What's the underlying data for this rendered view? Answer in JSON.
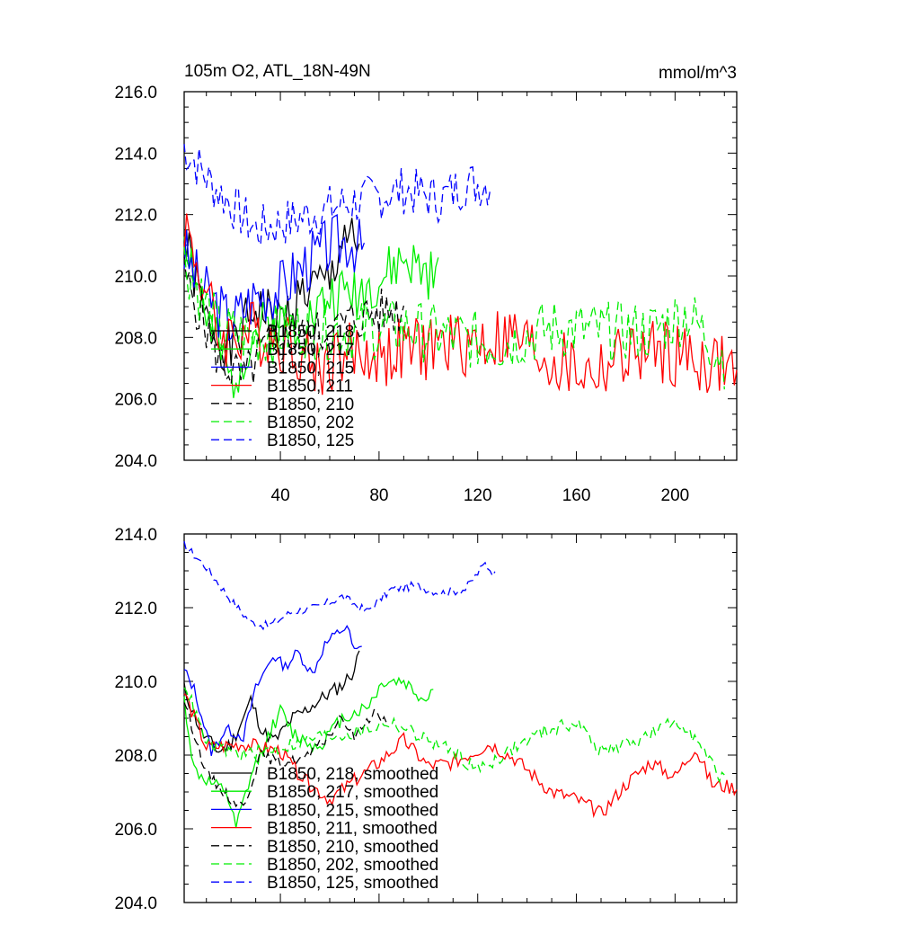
{
  "chart_data": [
    {
      "type": "line",
      "title_left": "105m O2, ATL_18N-49N",
      "title_right": "mmol/m^3",
      "xlim": [
        1,
        225
      ],
      "ylim": [
        204,
        216
      ],
      "xticks": [
        "40",
        "80",
        "120",
        "160",
        "200"
      ],
      "yticks": [
        "204.0",
        "206.0",
        "208.0",
        "210.0",
        "212.0",
        "214.0",
        "216.0"
      ],
      "series": [
        {
          "name": "B1850, 218",
          "color": "#000000",
          "dash": "solid",
          "anchors": [
            [
              1,
              211.2
            ],
            [
              10,
              208.5
            ],
            [
              20,
              207.5
            ],
            [
              30,
              209.0
            ],
            [
              40,
              208.5
            ],
            [
              50,
              209.5
            ],
            [
              60,
              209.8
            ],
            [
              66,
              211.5
            ],
            [
              72,
              210.5
            ]
          ],
          "amp": 0.9,
          "seed": 1
        },
        {
          "name": "B1850, 217",
          "color": "#00ee00",
          "dash": "solid",
          "anchors": [
            [
              1,
              211.5
            ],
            [
              10,
              208.6
            ],
            [
              20,
              206.5
            ],
            [
              30,
              208.3
            ],
            [
              40,
              208.4
            ],
            [
              50,
              208.5
            ],
            [
              60,
              209.3
            ],
            [
              70,
              209.5
            ],
            [
              80,
              209.8
            ],
            [
              90,
              210.5
            ],
            [
              104,
              209.8
            ]
          ],
          "amp": 0.9,
          "seed": 2
        },
        {
          "name": "B1850, 215",
          "color": "#0000ff",
          "dash": "solid",
          "anchors": [
            [
              1,
              210.8
            ],
            [
              8,
              209.6
            ],
            [
              20,
              208.5
            ],
            [
              30,
              209.4
            ],
            [
              40,
              209.6
            ],
            [
              50,
              210.4
            ],
            [
              60,
              211.0
            ],
            [
              68,
              211.2
            ],
            [
              74,
              210.8
            ]
          ],
          "amp": 1.0,
          "seed": 3
        },
        {
          "name": "B1850, 211",
          "color": "#ff0000",
          "dash": "solid",
          "anchors": [
            [
              1,
              211.8
            ],
            [
              15,
              208.0
            ],
            [
              30,
              208.2
            ],
            [
              45,
              207.8
            ],
            [
              55,
              207.0
            ],
            [
              65,
              207.5
            ],
            [
              80,
              207.4
            ],
            [
              100,
              207.7
            ],
            [
              115,
              207.8
            ],
            [
              135,
              208.0
            ],
            [
              150,
              207.2
            ],
            [
              165,
              206.8
            ],
            [
              180,
              207.4
            ],
            [
              195,
              207.5
            ],
            [
              210,
              207.2
            ],
            [
              225,
              207.0
            ]
          ],
          "amp": 1.1,
          "seed": 4
        },
        {
          "name": "B1850, 210",
          "color": "#000000",
          "dash": "dashed",
          "anchors": [
            [
              1,
              210.0
            ],
            [
              15,
              207.3
            ],
            [
              25,
              206.6
            ],
            [
              35,
              207.8
            ],
            [
              50,
              208.0
            ],
            [
              60,
              208.2
            ],
            [
              70,
              208.6
            ],
            [
              80,
              208.8
            ],
            [
              90,
              208.9
            ]
          ],
          "amp": 0.8,
          "seed": 5
        },
        {
          "name": "B1850, 202",
          "color": "#00ee00",
          "dash": "dashed",
          "anchors": [
            [
              1,
              210.5
            ],
            [
              15,
              208.2
            ],
            [
              30,
              208.0
            ],
            [
              50,
              208.3
            ],
            [
              70,
              208.2
            ],
            [
              90,
              208.3
            ],
            [
              110,
              208.0
            ],
            [
              130,
              207.8
            ],
            [
              150,
              208.3
            ],
            [
              170,
              208.2
            ],
            [
              190,
              208.2
            ],
            [
              205,
              208.8
            ],
            [
              215,
              207.8
            ],
            [
              220,
              207.3
            ]
          ],
          "amp": 1.0,
          "seed": 6
        },
        {
          "name": "B1850, 125",
          "color": "#0000ff",
          "dash": "dashed",
          "anchors": [
            [
              1,
              214.2
            ],
            [
              12,
              213.0
            ],
            [
              30,
              211.5
            ],
            [
              45,
              211.8
            ],
            [
              60,
              212.2
            ],
            [
              75,
              212.5
            ],
            [
              90,
              212.8
            ],
            [
              105,
              212.5
            ],
            [
              115,
              213.0
            ],
            [
              125,
              213.0
            ]
          ],
          "amp": 0.8,
          "seed": 7
        }
      ]
    },
    {
      "type": "line",
      "xlim": [
        1,
        225
      ],
      "ylim": [
        204,
        214
      ],
      "yticks": [
        "204.0",
        "206.0",
        "208.0",
        "210.0",
        "212.0",
        "214.0"
      ],
      "series": [
        {
          "name": "B1850, 218, smoothed",
          "color": "#000000",
          "dash": "solid",
          "anchors": [
            [
              1,
              209.8
            ],
            [
              8,
              208.6
            ],
            [
              15,
              208.1
            ],
            [
              20,
              208.3
            ],
            [
              25,
              209.0
            ],
            [
              28,
              209.5
            ],
            [
              33,
              208.6
            ],
            [
              38,
              208.4
            ],
            [
              45,
              209.0
            ],
            [
              50,
              209.2
            ],
            [
              58,
              209.6
            ],
            [
              65,
              209.9
            ],
            [
              70,
              210.3
            ],
            [
              72,
              210.8
            ]
          ],
          "amp": 0.2,
          "seed": 11
        },
        {
          "name": "B1850, 217, smoothed",
          "color": "#00ee00",
          "dash": "solid",
          "anchors": [
            [
              1,
              209.5
            ],
            [
              5,
              207.6
            ],
            [
              12,
              207.2
            ],
            [
              18,
              207.0
            ],
            [
              22,
              206.0
            ],
            [
              28,
              207.4
            ],
            [
              35,
              208.5
            ],
            [
              40,
              209.2
            ],
            [
              45,
              208.6
            ],
            [
              55,
              208.2
            ],
            [
              65,
              209.0
            ],
            [
              75,
              209.3
            ],
            [
              82,
              210.0
            ],
            [
              90,
              210.0
            ],
            [
              98,
              209.5
            ],
            [
              102,
              209.8
            ]
          ],
          "amp": 0.2,
          "seed": 12
        },
        {
          "name": "B1850, 215, smoothed",
          "color": "#0000ff",
          "dash": "solid",
          "anchors": [
            [
              1,
              210.3
            ],
            [
              5,
              209.8
            ],
            [
              12,
              208.1
            ],
            [
              18,
              208.7
            ],
            [
              25,
              208.5
            ],
            [
              30,
              209.8
            ],
            [
              37,
              210.7
            ],
            [
              42,
              210.4
            ],
            [
              47,
              210.8
            ],
            [
              53,
              210.2
            ],
            [
              58,
              211.0
            ],
            [
              63,
              211.3
            ],
            [
              67,
              211.5
            ],
            [
              70,
              210.8
            ],
            [
              73,
              210.9
            ]
          ],
          "amp": 0.15,
          "seed": 13
        },
        {
          "name": "B1850, 211, smoothed",
          "color": "#ff0000",
          "dash": "solid",
          "anchors": [
            [
              1,
              209.7
            ],
            [
              10,
              208.2
            ],
            [
              25,
              208.3
            ],
            [
              40,
              208.1
            ],
            [
              50,
              207.3
            ],
            [
              60,
              206.8
            ],
            [
              70,
              207.3
            ],
            [
              80,
              207.8
            ],
            [
              90,
              208.4
            ],
            [
              100,
              207.7
            ],
            [
              110,
              207.8
            ],
            [
              125,
              208.3
            ],
            [
              135,
              207.9
            ],
            [
              150,
              207.0
            ],
            [
              160,
              206.8
            ],
            [
              170,
              206.4
            ],
            [
              180,
              207.2
            ],
            [
              190,
              207.8
            ],
            [
              200,
              207.4
            ],
            [
              208,
              208.2
            ],
            [
              215,
              207.2
            ],
            [
              225,
              207.1
            ]
          ],
          "amp": 0.2,
          "seed": 14
        },
        {
          "name": "B1850, 210, smoothed",
          "color": "#000000",
          "dash": "dashed",
          "anchors": [
            [
              1,
              209.5
            ],
            [
              10,
              207.5
            ],
            [
              20,
              206.8
            ],
            [
              25,
              206.6
            ],
            [
              32,
              208.0
            ],
            [
              40,
              207.8
            ],
            [
              50,
              207.9
            ],
            [
              58,
              208.4
            ],
            [
              65,
              209.0
            ],
            [
              70,
              208.5
            ],
            [
              78,
              209.2
            ],
            [
              84,
              208.8
            ]
          ],
          "amp": 0.15,
          "seed": 15
        },
        {
          "name": "B1850, 202, smoothed",
          "color": "#00ee00",
          "dash": "dashed",
          "anchors": [
            [
              1,
              210.0
            ],
            [
              10,
              208.3
            ],
            [
              25,
              208.0
            ],
            [
              40,
              208.2
            ],
            [
              55,
              208.5
            ],
            [
              70,
              208.6
            ],
            [
              85,
              208.9
            ],
            [
              100,
              208.4
            ],
            [
              110,
              208.1
            ],
            [
              120,
              207.6
            ],
            [
              130,
              208.0
            ],
            [
              145,
              208.6
            ],
            [
              160,
              208.9
            ],
            [
              170,
              208.1
            ],
            [
              185,
              208.4
            ],
            [
              200,
              208.9
            ],
            [
              205,
              208.8
            ],
            [
              212,
              208.0
            ],
            [
              220,
              207.3
            ]
          ],
          "amp": 0.2,
          "seed": 16
        },
        {
          "name": "B1850, 125, smoothed",
          "color": "#0000ff",
          "dash": "dashed",
          "anchors": [
            [
              1,
              213.7
            ],
            [
              10,
              213.1
            ],
            [
              20,
              212.2
            ],
            [
              28,
              211.6
            ],
            [
              35,
              211.5
            ],
            [
              45,
              211.9
            ],
            [
              55,
              212.0
            ],
            [
              65,
              212.3
            ],
            [
              75,
              211.9
            ],
            [
              85,
              212.5
            ],
            [
              95,
              212.6
            ],
            [
              105,
              212.4
            ],
            [
              115,
              212.5
            ],
            [
              123,
              213.2
            ],
            [
              127,
              212.9
            ]
          ],
          "amp": 0.12,
          "seed": 17
        }
      ]
    }
  ]
}
